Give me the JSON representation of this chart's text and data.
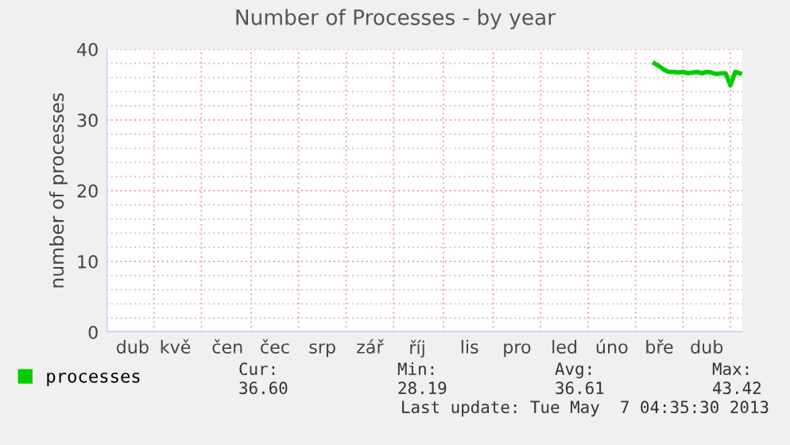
{
  "chart_data": {
    "type": "line",
    "title": "Number of Processes - by year",
    "ylabel": "number of processes",
    "categories": [
      null,
      null,
      null,
      null,
      null,
      "dub",
      null,
      null,
      null,
      null,
      null,
      null,
      null,
      null,
      "kvě",
      null,
      null,
      null,
      null,
      null,
      null,
      null,
      null,
      null,
      null,
      "čen",
      null,
      null,
      null,
      null,
      null,
      null,
      null,
      null,
      null,
      "čec",
      null,
      null,
      null,
      null,
      null,
      null,
      null,
      null,
      null,
      "srp",
      null,
      null,
      null,
      null,
      null,
      null,
      null,
      null,
      null,
      "zář",
      null,
      null,
      null,
      null,
      null,
      null,
      null,
      null,
      null,
      "říj",
      null,
      null,
      null,
      null,
      null,
      null,
      null,
      null,
      null,
      null,
      "lis",
      null,
      null,
      null,
      null,
      null,
      null,
      null,
      null,
      null,
      "pro",
      null,
      null,
      null,
      null,
      null,
      null,
      null,
      null,
      null,
      "led",
      null,
      null,
      null,
      null,
      null,
      null,
      null,
      null,
      null,
      "úno",
      null,
      null,
      null,
      null,
      null,
      null,
      null,
      null,
      null,
      "bře",
      null,
      null,
      null,
      null,
      null,
      null,
      null,
      null,
      null,
      "dub",
      null,
      null,
      null,
      null,
      null,
      null,
      null
    ],
    "series": [
      {
        "name": "processes",
        "color": "#00cc00",
        "values": [
          null,
          null,
          null,
          null,
          null,
          null,
          null,
          null,
          null,
          null,
          null,
          null,
          null,
          null,
          null,
          null,
          null,
          null,
          null,
          null,
          null,
          null,
          null,
          null,
          null,
          null,
          null,
          null,
          null,
          null,
          null,
          null,
          null,
          null,
          null,
          null,
          null,
          null,
          null,
          null,
          null,
          null,
          null,
          null,
          null,
          null,
          null,
          null,
          null,
          null,
          null,
          null,
          null,
          null,
          null,
          null,
          null,
          null,
          null,
          null,
          null,
          null,
          null,
          null,
          null,
          null,
          null,
          null,
          null,
          null,
          null,
          null,
          null,
          null,
          null,
          null,
          null,
          null,
          null,
          null,
          null,
          null,
          null,
          null,
          null,
          null,
          null,
          null,
          null,
          null,
          null,
          null,
          null,
          null,
          null,
          null,
          null,
          null,
          null,
          null,
          null,
          null,
          null,
          null,
          null,
          null,
          null,
          null,
          null,
          null,
          null,
          null,
          null,
          null,
          null,
          38.0,
          37.6,
          37.1,
          36.8,
          36.8,
          36.7,
          36.8,
          36.6,
          36.7,
          36.8,
          36.6,
          36.8,
          36.7,
          36.5,
          36.6,
          36.6,
          34.9,
          36.8,
          36.6
        ]
      }
    ],
    "ylim": [
      0,
      40
    ],
    "yticks": [
      0,
      {
        "value": 2,
        "label": null
      },
      {
        "value": 4,
        "label": null
      },
      {
        "value": 6,
        "label": null
      },
      {
        "value": 8,
        "label": null
      },
      10,
      {
        "value": 12,
        "label": null
      },
      {
        "value": 14,
        "label": null
      },
      {
        "value": 16,
        "label": null
      },
      {
        "value": 18,
        "label": null
      },
      20,
      {
        "value": 22,
        "label": null
      },
      {
        "value": 24,
        "label": null
      },
      {
        "value": 26,
        "label": null
      },
      {
        "value": 28,
        "label": null
      },
      30,
      {
        "value": 32,
        "label": null
      },
      {
        "value": 34,
        "label": null
      },
      {
        "value": 36,
        "label": null
      },
      {
        "value": 38,
        "label": null
      },
      40
    ],
    "grid": true,
    "legend": "bottom left",
    "line_style": "solid",
    "marker": "none",
    "annotations": [
      "Cur:",
      "36.60",
      "Min:",
      "28.19",
      "Avg:",
      "36.61",
      "Max:",
      "43.42",
      "Last update: Tue May  7 04:35:30 2013"
    ]
  }
}
